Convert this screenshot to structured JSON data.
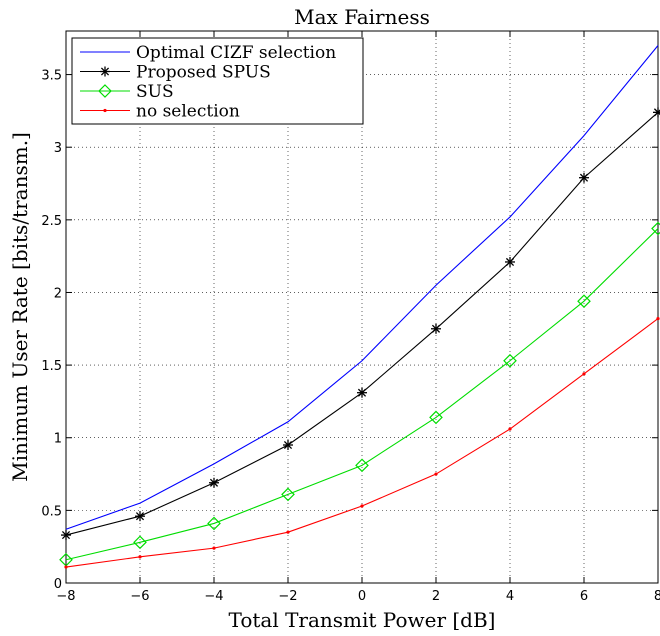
{
  "chart_data": {
    "type": "line",
    "title": "Max Fairness",
    "xlabel": "Total Transmit Power [dB]",
    "ylabel": "Minimum User Rate [bits/transm.]",
    "xlim": [
      -8,
      8
    ],
    "ylim": [
      0,
      3.8
    ],
    "xticks": [
      "-8",
      "-6",
      "-4",
      "-2",
      "0",
      "2",
      "4",
      "6",
      "8"
    ],
    "yticks": [
      "0",
      "0.5",
      "1",
      "1.5",
      "2",
      "2.5",
      "3",
      "3.5"
    ],
    "grid": true,
    "legend_position": "top-left",
    "x": [
      -8,
      -6,
      -4,
      -2,
      0,
      2,
      4,
      6,
      8
    ],
    "series": [
      {
        "name": "Optimal CIZF selection",
        "color": "#0000ff",
        "marker": "none",
        "values": [
          0.37,
          0.55,
          0.82,
          1.11,
          1.53,
          2.05,
          2.52,
          3.08,
          3.7
        ]
      },
      {
        "name": "Proposed SPUS",
        "color": "#000000",
        "marker": "star",
        "values": [
          0.33,
          0.46,
          0.69,
          0.95,
          1.31,
          1.75,
          2.21,
          2.79,
          3.24
        ]
      },
      {
        "name": "SUS",
        "color": "#00dd00",
        "marker": "diamond",
        "values": [
          0.16,
          0.28,
          0.41,
          0.61,
          0.81,
          1.14,
          1.53,
          1.94,
          2.44
        ]
      },
      {
        "name": "no selection",
        "color": "#ff0000",
        "marker": "dot",
        "values": [
          0.11,
          0.18,
          0.24,
          0.35,
          0.53,
          0.75,
          1.06,
          1.44,
          1.82
        ]
      }
    ]
  }
}
